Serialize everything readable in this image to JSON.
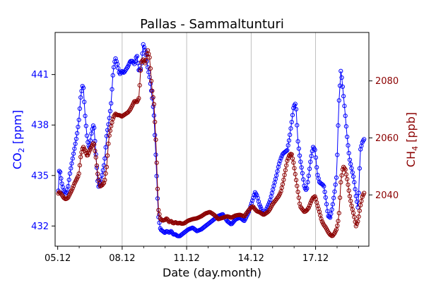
{
  "chart_data": {
    "type": "line",
    "title": "Pallas - Sammaltunturi",
    "xlabel": "Date (day.month)",
    "xlim": [
      5.0,
      19.6
    ],
    "xticks": [
      {
        "value": 5.12,
        "label": "05.12"
      },
      {
        "value": 8.12,
        "label": "08.12"
      },
      {
        "value": 11.12,
        "label": "11.12"
      },
      {
        "value": 14.12,
        "label": "14.12"
      },
      {
        "value": 17.12,
        "label": "17.12"
      }
    ],
    "vertical_gridlines_at": [
      8.12,
      11.12,
      14.12,
      17.12
    ],
    "left_axis": {
      "label_main": "CO",
      "label_sub": "2",
      "label_rest": " [ppm]",
      "color": "#0000ff",
      "ylim": [
        430.8,
        443.5
      ],
      "ticks": [
        {
          "value": 432,
          "label": "432"
        },
        {
          "value": 435,
          "label": "435"
        },
        {
          "value": 438,
          "label": "438"
        },
        {
          "value": 441,
          "label": "441"
        }
      ]
    },
    "right_axis": {
      "label_main": "CH",
      "label_sub": "4",
      "label_rest": " [ppb]",
      "color": "#8b0000",
      "ylim": [
        2022,
        2097
      ],
      "ticks": [
        {
          "value": 2040,
          "label": "2040"
        },
        {
          "value": 2060,
          "label": "2060"
        },
        {
          "value": 2080,
          "label": "2080"
        }
      ]
    },
    "series": [
      {
        "name": "CO2",
        "axis": "left",
        "color": "#0000ff",
        "x": [
          5.15,
          5.2,
          5.3,
          5.4,
          5.5,
          5.6,
          5.7,
          5.8,
          5.9,
          6.0,
          6.1,
          6.2,
          6.3,
          6.4,
          6.5,
          6.6,
          6.7,
          6.8,
          6.9,
          7.0,
          7.1,
          7.2,
          7.3,
          7.4,
          7.5,
          7.6,
          7.7,
          7.8,
          7.9,
          8.0,
          8.1,
          8.2,
          8.3,
          8.4,
          8.5,
          8.6,
          8.7,
          8.8,
          8.9,
          9.0,
          9.1,
          9.2,
          9.3,
          9.4,
          9.5,
          9.6,
          9.7,
          9.8,
          9.9,
          10.0,
          10.1,
          10.2,
          10.3,
          10.4,
          10.5,
          10.6,
          10.7,
          10.8,
          10.9,
          11.0,
          11.2,
          11.4,
          11.6,
          11.8,
          12.0,
          12.2,
          12.4,
          12.6,
          12.8,
          13.0,
          13.2,
          13.4,
          13.6,
          13.8,
          14.0,
          14.1,
          14.2,
          14.3,
          14.4,
          14.5,
          14.6,
          14.7,
          14.8,
          14.9,
          15.0,
          15.1,
          15.2,
          15.3,
          15.4,
          15.5,
          15.6,
          15.7,
          15.8,
          15.9,
          16.0,
          16.1,
          16.2,
          16.3,
          16.4,
          16.5,
          16.6,
          16.7,
          16.8,
          16.9,
          17.0,
          17.1,
          17.2,
          17.3,
          17.4,
          17.5,
          17.6,
          17.7,
          17.8,
          17.9,
          18.0,
          18.1,
          18.2,
          18.3,
          18.4,
          18.5,
          18.6,
          18.7,
          18.8,
          18.9,
          19.0,
          19.1,
          19.2,
          19.3,
          19.4
        ],
        "values": [
          434.1,
          435.5,
          434.6,
          434.1,
          433.9,
          434.3,
          435.2,
          435.9,
          436.6,
          437.3,
          438.2,
          439.8,
          440.5,
          438.5,
          437.1,
          436.6,
          437.6,
          438.1,
          436.2,
          434.3,
          434.5,
          435.1,
          435.8,
          437.4,
          438.2,
          439.2,
          441.2,
          442.0,
          441.6,
          441.0,
          441.2,
          441.1,
          441.3,
          441.5,
          441.8,
          441.8,
          441.6,
          442.2,
          441.2,
          441.4,
          442.8,
          442.4,
          441.5,
          440.8,
          439.8,
          438.6,
          435.8,
          432.6,
          431.8,
          431.7,
          431.6,
          431.7,
          431.6,
          431.7,
          431.5,
          431.5,
          431.4,
          431.4,
          431.5,
          431.6,
          431.8,
          431.9,
          431.7,
          431.8,
          432.0,
          432.2,
          432.4,
          432.6,
          432.7,
          432.3,
          432.1,
          432.4,
          432.5,
          432.3,
          432.8,
          433.2,
          433.6,
          434.0,
          433.8,
          433.3,
          433.0,
          432.7,
          432.9,
          433.2,
          433.5,
          434.0,
          434.5,
          435.0,
          435.6,
          436.0,
          436.3,
          436.4,
          436.5,
          437.2,
          438.1,
          439.1,
          439.3,
          437.0,
          436.0,
          435.2,
          434.3,
          434.1,
          435.0,
          436.0,
          436.7,
          436.5,
          435.1,
          434.6,
          434.5,
          434.4,
          433.6,
          432.6,
          432.5,
          433.1,
          434.0,
          435.0,
          439.2,
          441.3,
          440.0,
          438.6,
          437.1,
          436.0,
          435.4,
          434.8,
          433.8,
          433.0,
          436.5,
          437.0,
          437.2
        ],
        "note": "values sampled at approx. 0.1-day intervals; visual approximation"
      },
      {
        "name": "CH4",
        "axis": "right",
        "color": "#8b0000",
        "x": [
          5.15,
          5.2,
          5.3,
          5.4,
          5.5,
          5.6,
          5.7,
          5.8,
          5.9,
          6.0,
          6.1,
          6.2,
          6.3,
          6.4,
          6.5,
          6.6,
          6.7,
          6.8,
          6.9,
          7.0,
          7.1,
          7.2,
          7.3,
          7.4,
          7.5,
          7.6,
          7.7,
          7.8,
          7.9,
          8.0,
          8.1,
          8.2,
          8.3,
          8.4,
          8.5,
          8.6,
          8.7,
          8.8,
          8.9,
          9.0,
          9.1,
          9.2,
          9.3,
          9.4,
          9.5,
          9.6,
          9.7,
          9.8,
          9.9,
          10.0,
          10.1,
          10.2,
          10.3,
          10.4,
          10.5,
          10.6,
          10.7,
          10.8,
          10.9,
          11.0,
          11.2,
          11.4,
          11.6,
          11.8,
          12.0,
          12.2,
          12.4,
          12.6,
          12.8,
          13.0,
          13.2,
          13.4,
          13.6,
          13.8,
          14.0,
          14.1,
          14.2,
          14.3,
          14.4,
          14.5,
          14.6,
          14.7,
          14.8,
          14.9,
          15.0,
          15.1,
          15.2,
          15.3,
          15.4,
          15.5,
          15.6,
          15.7,
          15.8,
          15.9,
          16.0,
          16.1,
          16.2,
          16.3,
          16.4,
          16.5,
          16.6,
          16.7,
          16.8,
          16.9,
          17.0,
          17.1,
          17.2,
          17.3,
          17.4,
          17.5,
          17.6,
          17.7,
          17.8,
          17.9,
          18.0,
          18.1,
          18.2,
          18.3,
          18.4,
          18.5,
          18.6,
          18.7,
          18.8,
          18.9,
          19.0,
          19.1,
          19.2,
          19.3,
          19.4
        ],
        "values": [
          2040.5,
          2041.0,
          2040.2,
          2039.0,
          2038.5,
          2039.0,
          2040.5,
          2042.0,
          2044.0,
          2045.5,
          2047.0,
          2054.0,
          2057.0,
          2055.5,
          2053.5,
          2055.5,
          2057.0,
          2058.5,
          2053.0,
          2046.0,
          2043.0,
          2043.5,
          2044.5,
          2050.0,
          2060.0,
          2064.0,
          2067.0,
          2068.5,
          2068.0,
          2068.0,
          2067.5,
          2068.0,
          2068.5,
          2069.0,
          2070.0,
          2071.5,
          2073.0,
          2072.5,
          2074.0,
          2086.5,
          2087.5,
          2086.0,
          2091.0,
          2088.0,
          2077.5,
          2072.0,
          2057.0,
          2035.0,
          2031.5,
          2031.0,
          2031.2,
          2031.8,
          2030.5,
          2030.8,
          2030.0,
          2030.4,
          2030.0,
          2030.2,
          2029.9,
          2030.0,
          2031.0,
          2031.5,
          2031.8,
          2032.5,
          2033.5,
          2034.0,
          2033.0,
          2031.5,
          2032.0,
          2032.5,
          2032.0,
          2032.8,
          2033.0,
          2032.5,
          2034.5,
          2035.5,
          2036.0,
          2035.0,
          2034.2,
          2034.0,
          2033.5,
          2033.0,
          2033.5,
          2034.0,
          2035.0,
          2036.5,
          2037.5,
          2038.5,
          2039.5,
          2041.0,
          2044.0,
          2048.0,
          2052.0,
          2054.0,
          2054.5,
          2051.0,
          2046.0,
          2041.0,
          2036.0,
          2035.0,
          2034.0,
          2034.5,
          2035.5,
          2037.5,
          2039.0,
          2039.5,
          2036.5,
          2034.0,
          2031.0,
          2029.5,
          2028.5,
          2027.0,
          2026.0,
          2025.5,
          2026.5,
          2028.0,
          2032.0,
          2045.0,
          2050.0,
          2049.0,
          2045.0,
          2040.0,
          2036.0,
          2033.0,
          2029.0,
          2031.0,
          2036.0,
          2039.5,
          2041.0
        ],
        "note": "values sampled at approx. 0.1-day intervals; visual approximation"
      }
    ]
  }
}
